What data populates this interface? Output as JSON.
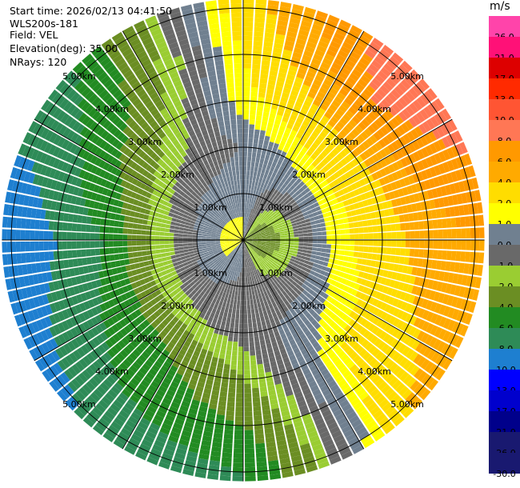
{
  "header": {
    "start_time": "Start time: 2026/02/13 04:41:50",
    "instrument": "WLS200s-181",
    "field": "Field: VEL",
    "elevation": "Elevation(deg): 35.00",
    "nrays": "NRays: 120"
  },
  "colorbar": {
    "unit": "m/s",
    "bins": [
      {
        "label": "26.0",
        "color": "#ff44aa"
      },
      {
        "label": "21.0",
        "color": "#ff1177"
      },
      {
        "label": "17.0",
        "color": "#dd0000"
      },
      {
        "label": "13.0",
        "color": "#ff2a00"
      },
      {
        "label": "10.0",
        "color": "#ff5533"
      },
      {
        "label": "8.0",
        "color": "#ff7755"
      },
      {
        "label": "6.0",
        "color": "#ff9900"
      },
      {
        "label": "4.0",
        "color": "#ffaa00"
      },
      {
        "label": "2.0",
        "color": "#ffdd00"
      },
      {
        "label": "1.0",
        "color": "#ffff00"
      },
      {
        "label": "0.0",
        "color": "#708090"
      },
      {
        "label": "-1.0",
        "color": "#696969"
      },
      {
        "label": "-2.0",
        "color": "#9acd32"
      },
      {
        "label": "-4.0",
        "color": "#6b8e23"
      },
      {
        "label": "-6.0",
        "color": "#228b22"
      },
      {
        "label": "-8.0",
        "color": "#2e8b57"
      },
      {
        "label": "-10.0",
        "color": "#1e7fd0"
      },
      {
        "label": "-13.0",
        "color": "#0000ff"
      },
      {
        "label": "-17.0",
        "color": "#0000cd"
      },
      {
        "label": "-21.0",
        "color": "#00008b"
      },
      {
        "label": "-26.0",
        "color": "#191970"
      },
      {
        "label": "-30.0",
        "color": "#191970"
      }
    ]
  },
  "chart_data": {
    "type": "heatmap",
    "projection": "polar (plan position indicator)",
    "field": "VEL",
    "units": "m/s",
    "elevation_deg": 35.0,
    "nrays": 120,
    "range_rings_km": [
      1.0,
      2.0,
      3.0,
      4.0,
      5.0
    ],
    "max_range_km": 5.2,
    "range_ring_labels": [
      "1.00km",
      "2.00km",
      "3.00km",
      "4.00km",
      "5.00km"
    ],
    "radial_spokes_deg": [
      0,
      30,
      60,
      90,
      120,
      150,
      180,
      210,
      240,
      270,
      300,
      330
    ],
    "color_scale_ticks": [
      26.0,
      21.0,
      17.0,
      13.0,
      10.0,
      8.0,
      6.0,
      4.0,
      2.0,
      1.0,
      0.0,
      -1.0,
      -2.0,
      -4.0,
      -6.0,
      -8.0,
      -10.0,
      -13.0,
      -17.0,
      -21.0,
      -26.0,
      -30.0
    ],
    "velocity_by_sector": [
      {
        "azimuth_deg": 0,
        "range_km": [
          0.5,
          2.0,
          3.0,
          4.0,
          5.0
        ],
        "velocity": [
          1.0,
          0.0,
          1.5,
          2.0,
          3.0
        ]
      },
      {
        "azimuth_deg": 45,
        "range_km": [
          0.5,
          2.0,
          3.0,
          4.0,
          5.0
        ],
        "velocity": [
          -2.0,
          1.5,
          4.0,
          8.0,
          10.0
        ]
      },
      {
        "azimuth_deg": 90,
        "range_km": [
          0.5,
          2.0,
          3.0,
          4.0,
          5.0
        ],
        "velocity": [
          -3.0,
          1.5,
          3.0,
          5.0,
          6.0
        ]
      },
      {
        "azimuth_deg": 135,
        "range_km": [
          0.5,
          2.0,
          3.0,
          4.0,
          5.0
        ],
        "velocity": [
          -2.0,
          0.5,
          2.0,
          3.0,
          4.0
        ]
      },
      {
        "azimuth_deg": 180,
        "range_km": [
          0.5,
          2.0,
          3.0,
          4.0,
          5.0
        ],
        "velocity": [
          0.0,
          -0.5,
          -2.0,
          -4.0,
          -6.0
        ]
      },
      {
        "azimuth_deg": 225,
        "range_km": [
          0.5,
          2.0,
          3.0,
          4.0,
          5.0
        ],
        "velocity": [
          1.0,
          -1.5,
          -5.0,
          -6.0,
          -8.0
        ]
      },
      {
        "azimuth_deg": 270,
        "range_km": [
          0.5,
          2.0,
          3.0,
          4.0,
          5.0
        ],
        "velocity": [
          1.0,
          -2.0,
          -6.0,
          -8.0,
          -10.0
        ]
      },
      {
        "azimuth_deg": 315,
        "range_km": [
          0.5,
          2.0,
          3.0,
          4.0,
          5.0
        ],
        "velocity": [
          1.0,
          -1.0,
          -3.0,
          -5.0,
          -6.0
        ]
      }
    ]
  }
}
